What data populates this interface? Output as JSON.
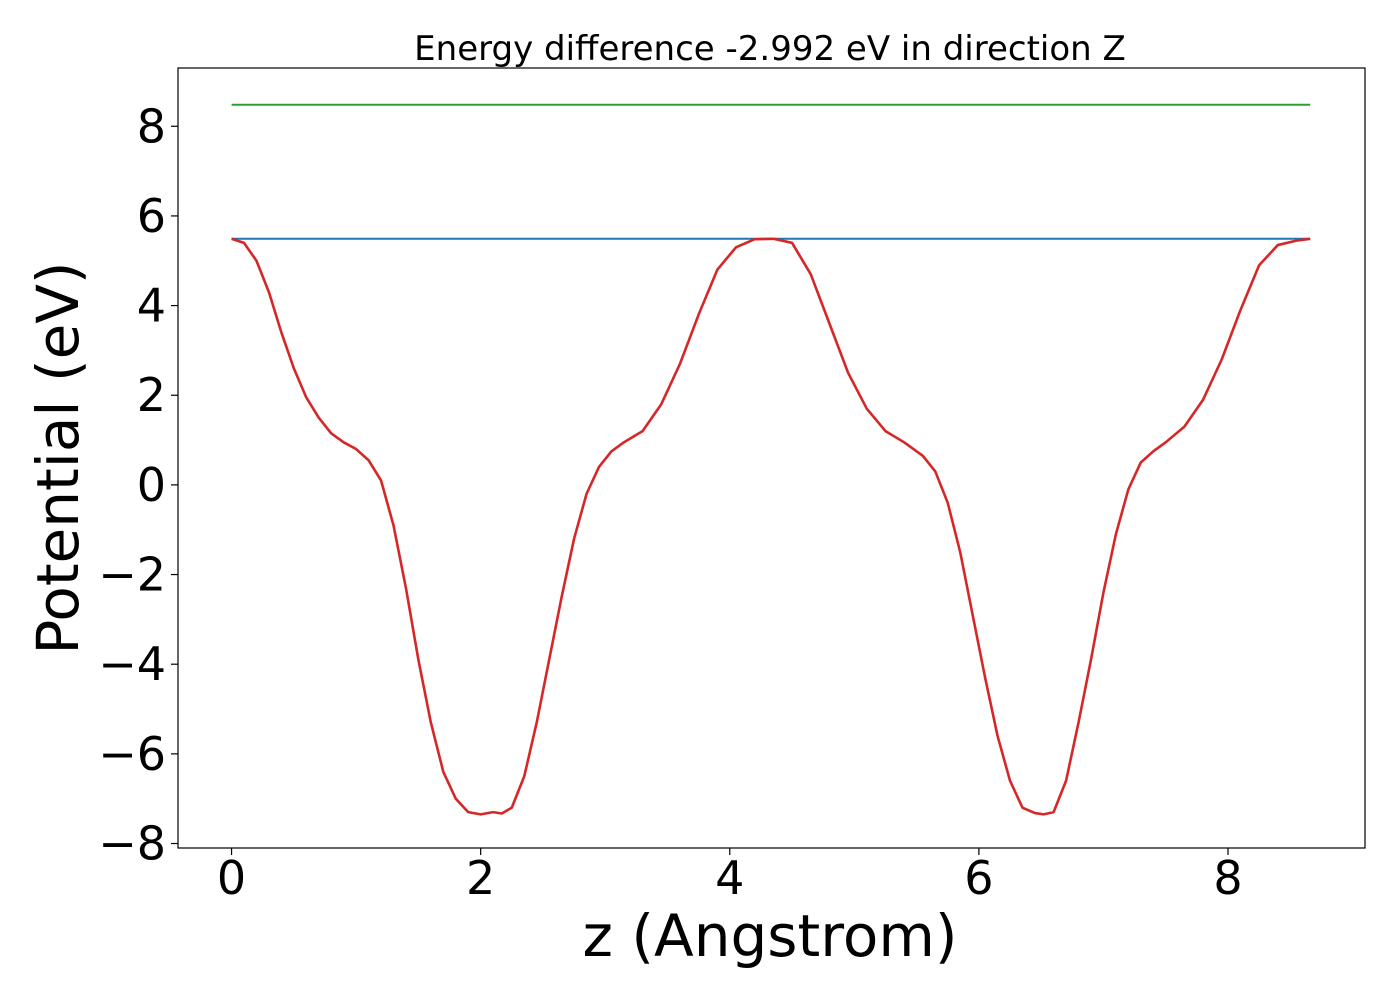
{
  "chart_data": {
    "type": "line",
    "title": "Energy difference -2.992 eV in direction Z",
    "xlabel": "z (Angstrom)",
    "ylabel": "Potential (eV)",
    "xlim": [
      -0.43,
      9.1
    ],
    "ylim": [
      -8.1,
      9.3
    ],
    "xticks": [
      0,
      2,
      4,
      6,
      8
    ],
    "yticks": [
      -8,
      -6,
      -4,
      -2,
      0,
      2,
      4,
      6,
      8
    ],
    "xtick_labels": [
      "0",
      "2",
      "4",
      "6",
      "8"
    ],
    "ytick_labels": [
      "−8",
      "−6",
      "−4",
      "−2",
      "0",
      "2",
      "4",
      "6",
      "8"
    ],
    "grid": false,
    "legend": false,
    "series": [
      {
        "color": "#2ca02c",
        "x": [
          0,
          8.66
        ],
        "y": [
          8.48,
          8.48
        ]
      },
      {
        "color": "#1f77b4",
        "x": [
          0,
          8.66
        ],
        "y": [
          5.49,
          5.49
        ]
      },
      {
        "color": "#d62728",
        "x": [
          0,
          0.1,
          0.2,
          0.3,
          0.4,
          0.5,
          0.6,
          0.7,
          0.8,
          0.9,
          1.0,
          1.1,
          1.2,
          1.3,
          1.4,
          1.5,
          1.6,
          1.7,
          1.8,
          1.9,
          2.0,
          2.1,
          2.17,
          2.25,
          2.35,
          2.45,
          2.55,
          2.65,
          2.75,
          2.85,
          2.95,
          3.05,
          3.15,
          3.3,
          3.45,
          3.6,
          3.75,
          3.9,
          4.05,
          4.2,
          4.35,
          4.5,
          4.65,
          4.8,
          4.95,
          5.1,
          5.25,
          5.4,
          5.55,
          5.65,
          5.75,
          5.85,
          5.95,
          6.05,
          6.15,
          6.25,
          6.35,
          6.45,
          6.52,
          6.6,
          6.7,
          6.8,
          6.9,
          7.0,
          7.1,
          7.2,
          7.3,
          7.4,
          7.5,
          7.65,
          7.8,
          7.95,
          8.1,
          8.25,
          8.4,
          8.55,
          8.66
        ],
        "y": [
          5.49,
          5.4,
          5.0,
          4.3,
          3.4,
          2.6,
          1.95,
          1.5,
          1.15,
          0.95,
          0.8,
          0.55,
          0.1,
          -0.9,
          -2.3,
          -3.9,
          -5.3,
          -6.4,
          -7.0,
          -7.3,
          -7.35,
          -7.3,
          -7.33,
          -7.2,
          -6.5,
          -5.3,
          -3.9,
          -2.5,
          -1.2,
          -0.2,
          0.4,
          0.75,
          0.95,
          1.2,
          1.8,
          2.7,
          3.8,
          4.8,
          5.3,
          5.48,
          5.49,
          5.4,
          4.7,
          3.6,
          2.5,
          1.7,
          1.2,
          0.95,
          0.65,
          0.3,
          -0.4,
          -1.5,
          -2.9,
          -4.3,
          -5.6,
          -6.6,
          -7.2,
          -7.32,
          -7.35,
          -7.3,
          -6.6,
          -5.3,
          -3.9,
          -2.4,
          -1.1,
          -0.1,
          0.5,
          0.75,
          0.95,
          1.3,
          1.9,
          2.8,
          3.9,
          4.9,
          5.35,
          5.45,
          5.49
        ]
      }
    ]
  }
}
